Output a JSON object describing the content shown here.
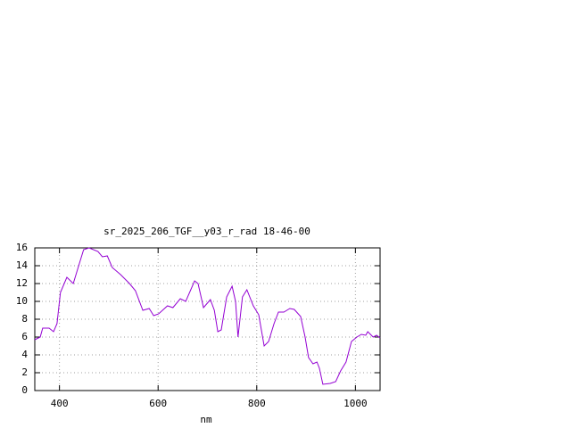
{
  "chart_data": {
    "type": "line",
    "title": "sr_2025_206_TGF__y03_r_rad 18-46-00",
    "xlabel": "nm",
    "x": [
      350,
      361,
      366,
      379,
      388,
      395,
      402,
      415,
      428,
      439,
      449,
      460,
      478,
      487,
      497,
      507,
      524,
      542,
      554,
      569,
      582,
      591,
      601,
      619,
      630,
      645,
      656,
      674,
      681,
      692,
      706,
      714,
      721,
      728,
      739,
      750,
      757,
      762,
      771,
      780,
      793,
      804,
      815,
      824,
      835,
      844,
      855,
      867,
      876,
      889,
      898,
      905,
      914,
      922,
      927,
      934,
      949,
      960,
      970,
      981,
      992,
      1003,
      1012,
      1021,
      1025,
      1036,
      1043,
      1050
    ],
    "series": [
      {
        "color": "#9400d3",
        "values": [
          5.7,
          6.0,
          7.0,
          7.0,
          6.6,
          7.5,
          11.0,
          12.7,
          12.0,
          14.0,
          15.8,
          16.0,
          15.6,
          15.0,
          15.1,
          13.8,
          13.0,
          12.0,
          11.2,
          9.0,
          9.2,
          8.4,
          8.6,
          9.5,
          9.3,
          10.3,
          10.0,
          12.3,
          12.0,
          9.3,
          10.2,
          9.0,
          6.6,
          6.8,
          10.5,
          11.7,
          10.0,
          6.0,
          10.5,
          11.3,
          9.5,
          8.5,
          5.0,
          5.5,
          7.5,
          8.8,
          8.8,
          9.2,
          9.1,
          8.3,
          6.0,
          3.7,
          3.0,
          3.2,
          2.5,
          0.7,
          0.8,
          1.0,
          2.2,
          3.2,
          5.5,
          6.0,
          6.3,
          6.2,
          6.6,
          6.0,
          6.2,
          5.9
        ]
      }
    ],
    "xlim": [
      350,
      1050
    ],
    "ylim": [
      0,
      16
    ],
    "xticks": [
      400,
      600,
      800,
      1000
    ],
    "yticks": [
      0,
      2,
      4,
      6,
      8,
      10,
      12,
      14,
      16
    ],
    "grid": true
  }
}
